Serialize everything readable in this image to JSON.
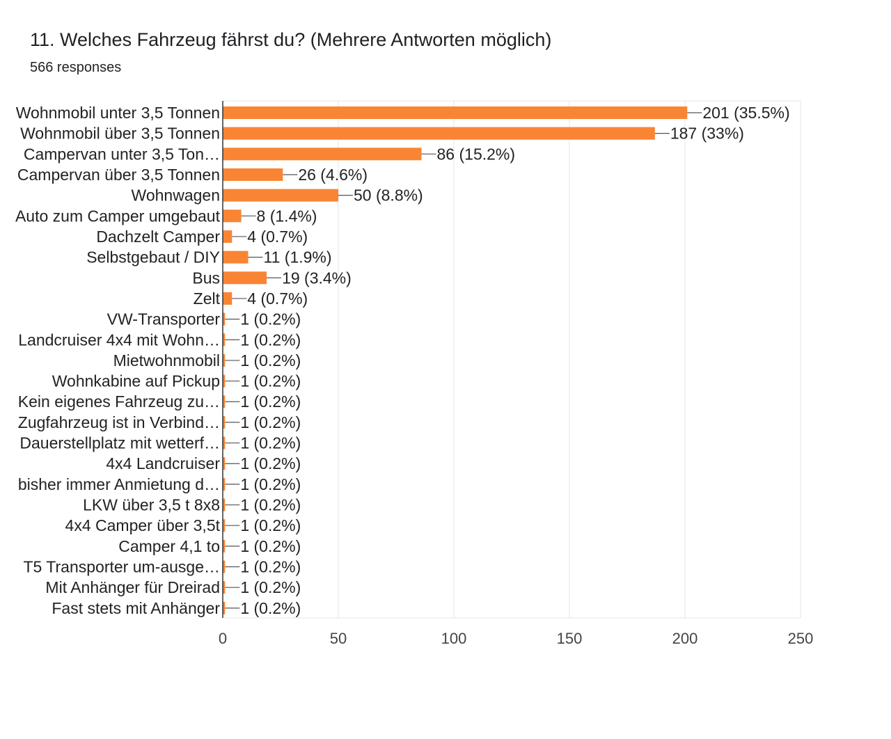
{
  "question": {
    "title": "11. Welches Fahrzeug fährst du? (Mehrere Antworten möglich)",
    "responses": "566 responses"
  },
  "colors": {
    "bar": "#F98534",
    "grid": "#E6E6E6",
    "axis": "#333333",
    "leader": "#555555"
  },
  "chart_data": {
    "type": "bar",
    "orientation": "horizontal",
    "title": "11. Welches Fahrzeug fährst du? (Mehrere Antworten möglich)",
    "xlabel": "",
    "ylabel": "",
    "xlim": [
      0,
      250
    ],
    "xticks": [
      0,
      50,
      100,
      150,
      200,
      250
    ],
    "grid": true,
    "categories": [
      "Wohnmobil unter 3,5 Tonnen",
      "Wohnmobil über 3,5 Tonnen",
      "Campervan unter 3,5 Ton…",
      "Campervan über 3,5 Tonnen",
      "Wohnwagen",
      "Auto zum Camper umgebaut",
      "Dachzelt Camper",
      "Selbstgebaut / DIY",
      "Bus",
      "Zelt",
      "VW-Transporter",
      "Landcruiser 4x4 mit Wohn…",
      "Mietwohnmobil",
      "Wohnkabine auf Pickup",
      "Kein eigenes Fahrzeug zu…",
      "Zugfahrzeug ist in Verbind…",
      "Dauerstellplatz mit wetterf…",
      "4x4 Landcruiser",
      "bisher immer Anmietung d…",
      "LKW über 3,5 t 8x8",
      "4x4 Camper über 3,5t",
      "Camper 4,1 to",
      "T5 Transporter um-ausge…",
      "Mit Anhänger für Dreirad",
      "Fast stets mit Anhänger"
    ],
    "values": [
      201,
      187,
      86,
      26,
      50,
      8,
      4,
      11,
      19,
      4,
      1,
      1,
      1,
      1,
      1,
      1,
      1,
      1,
      1,
      1,
      1,
      1,
      1,
      1,
      1
    ],
    "labels": [
      "201 (35.5%)",
      "187 (33%)",
      "86 (15.2%)",
      "26 (4.6%)",
      "50 (8.8%)",
      "8 (1.4%)",
      "4 (0.7%)",
      "11 (1.9%)",
      "19 (3.4%)",
      "4 (0.7%)",
      "1 (0.2%)",
      "1 (0.2%)",
      "1 (0.2%)",
      "1 (0.2%)",
      "1 (0.2%)",
      "1 (0.2%)",
      "1 (0.2%)",
      "1 (0.2%)",
      "1 (0.2%)",
      "1 (0.2%)",
      "1 (0.2%)",
      "1 (0.2%)",
      "1 (0.2%)",
      "1 (0.2%)",
      "1 (0.2%)"
    ]
  }
}
